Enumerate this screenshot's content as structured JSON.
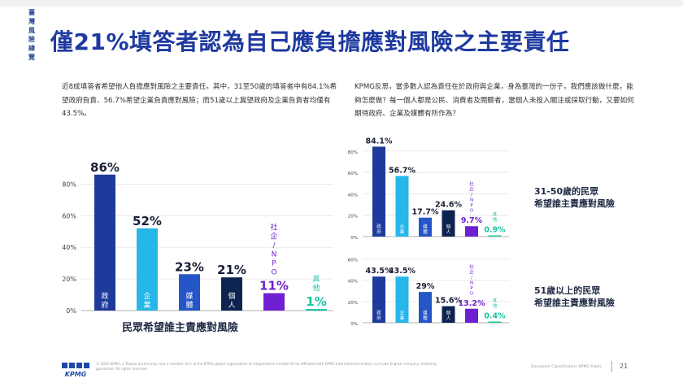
{
  "side_tab": [
    "臺",
    "灣",
    "風",
    "險",
    "總",
    "覽"
  ],
  "title": "僅21%填答者認為自己應負擔應對風險之主要責任",
  "para_left": "近8成填答者希望他人負擔應對風險之主要責任。其中，31至50歲的填答者中有84.1%希望政府負責、56.7%希望企業負責應對風險；而51歲以上冀望政府及企業負責者均僅有43.5%。",
  "para_right": "KPMG反思，當多數人認為責任在於政府與企業，身為臺灣的一份子，我們應該做什麼，能夠怎麼做？每一個人都是公民、消費者及閱聽者，當個人未投入關注或採取行動，又要如何期待政府、企業及媒體有所作為？",
  "main_caption": "民眾希望誰主責應對風險",
  "right_caption_1": [
    "31-50歲的民眾",
    "希望誰主責應對風險"
  ],
  "right_caption_2": [
    "51歲以上的民眾",
    "希望誰主責應對風險"
  ],
  "footer": {
    "logo": "KPMG",
    "legal": "© 2022 KPMG, a Taiwan partnership and a member firm of the KPMG global organization of independent member firms affiliated with KPMG International Limited, a private English company limited by guarantee. All rights reserved.",
    "classification": "Document Classification: KPMG Public",
    "page": "21"
  },
  "colors": {
    "gov": "#1e3a9b",
    "biz": "#27b6e8",
    "media": "#2456c8",
    "self": "#0d2350",
    "npo": "#6d1fd1",
    "other": "#19c3a3",
    "title": "#1e3aa0"
  },
  "chart_data": [
    {
      "type": "bar",
      "title": "",
      "categories": [
        "政府",
        "企業",
        "媒體",
        "個人",
        "社企/NPO",
        "其他"
      ],
      "values": [
        86,
        52,
        23,
        21,
        11,
        1
      ],
      "value_labels": [
        "86%",
        "52%",
        "23%",
        "21%",
        "11%",
        "1%"
      ],
      "yticks": [
        "0%",
        "20%",
        "40%",
        "60%",
        "80%"
      ],
      "ylim": [
        0,
        90
      ],
      "grid": true
    },
    {
      "type": "bar",
      "title": "",
      "categories": [
        "政府",
        "企業",
        "媒體",
        "個人",
        "社企/NPO",
        "其他"
      ],
      "values": [
        84.1,
        56.7,
        17.7,
        24.6,
        9.7,
        0.9
      ],
      "value_labels": [
        "84.1%",
        "56.7%",
        "17.7%",
        "24.6%",
        "9.7%",
        "0.9%"
      ],
      "yticks": [
        "0%",
        "20%",
        "40%",
        "60%",
        "80%"
      ],
      "ylim": [
        0,
        92
      ],
      "grid": true
    },
    {
      "type": "bar",
      "title": "",
      "categories": [
        "政府",
        "企業",
        "媒體",
        "個人",
        "社企/NPO",
        "其他"
      ],
      "values": [
        43.5,
        43.5,
        29,
        15.6,
        13.2,
        0.4
      ],
      "value_labels": [
        "43.5%",
        "43.5%",
        "29%",
        "15.6%",
        "13.2%",
        "0.4%"
      ],
      "yticks": [
        "0%",
        "20%",
        "40%",
        "60%"
      ],
      "ylim": [
        0,
        62
      ],
      "grid": true
    }
  ]
}
